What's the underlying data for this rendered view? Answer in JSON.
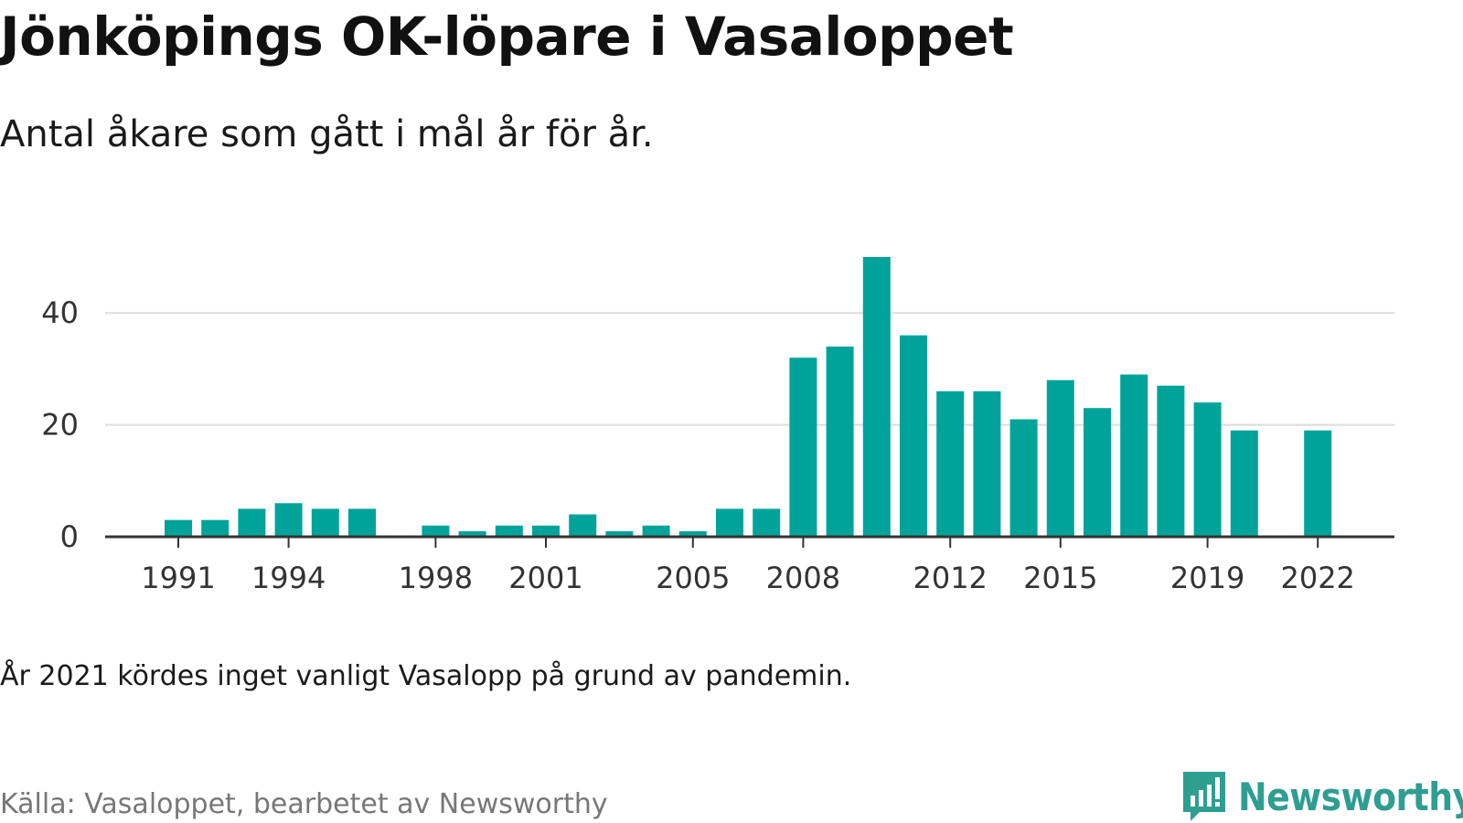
{
  "header": {
    "title": "Jönköpings OK-löpare i Vasaloppet",
    "subtitle": "Antal åkare som gått i mål år för år."
  },
  "footer": {
    "note": "År 2021 kördes inget vanligt Vasalopp på grund av pandemin.",
    "source": "Källa: Vasaloppet, bearbetet av Newsworthy",
    "brand": "Newsworthy",
    "brand_icon": "newsworthy-logo-icon"
  },
  "colors": {
    "bar": "#00a39a",
    "grid": "#dddddd",
    "axis": "#333333",
    "brand": "#2e9e91"
  },
  "chart_data": {
    "type": "bar",
    "title": "Jönköpings OK-löpare i Vasaloppet",
    "subtitle": "Antal åkare som gått i mål år för år.",
    "xlabel": "",
    "ylabel": "",
    "x": [
      1991,
      1992,
      1993,
      1994,
      1995,
      1996,
      1997,
      1998,
      1999,
      2000,
      2001,
      2002,
      2003,
      2004,
      2005,
      2006,
      2007,
      2008,
      2009,
      2010,
      2011,
      2012,
      2013,
      2014,
      2015,
      2016,
      2017,
      2018,
      2019,
      2020,
      2021,
      2022
    ],
    "values": [
      3,
      3,
      5,
      6,
      5,
      5,
      null,
      2,
      1,
      2,
      2,
      4,
      1,
      2,
      1,
      5,
      5,
      32,
      34,
      50,
      36,
      26,
      26,
      21,
      28,
      23,
      29,
      27,
      24,
      19,
      null,
      19
    ],
    "x_ticks": [
      "1991",
      "1994",
      "1998",
      "2001",
      "2005",
      "2008",
      "2012",
      "2015",
      "2019",
      "2022"
    ],
    "y_ticks": [
      0,
      20,
      40
    ],
    "ylim": [
      0,
      50
    ],
    "grid": true,
    "legend": "none"
  }
}
